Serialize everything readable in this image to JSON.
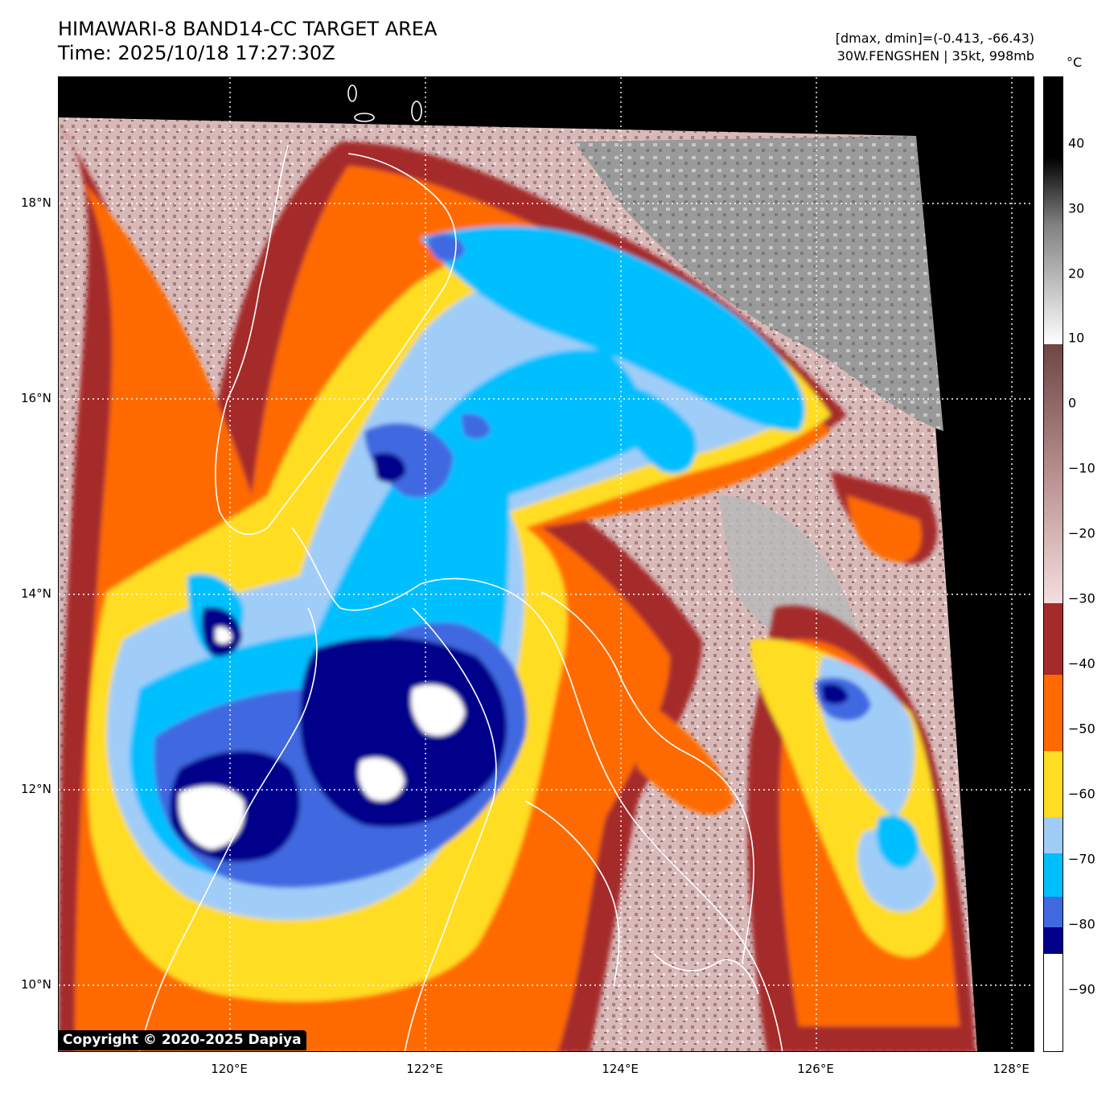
{
  "header": {
    "title_line1": "HIMAWARI-8 BAND14-CC TARGET AREA",
    "title_line2": "Time: 2025/10/18 17:27:30Z",
    "info_line1": "[dmax, dmin]=(-0.413, -66.43)",
    "info_line2": "30W.FENGSHEN | 35kt, 998mb"
  },
  "map": {
    "lat_ticks": [
      {
        "label": "18°N",
        "value": 18
      },
      {
        "label": "16°N",
        "value": 16
      },
      {
        "label": "14°N",
        "value": 14
      },
      {
        "label": "12°N",
        "value": 12
      },
      {
        "label": "10°N",
        "value": 10
      }
    ],
    "lon_ticks": [
      {
        "label": "120°E",
        "value": 120
      },
      {
        "label": "122°E",
        "value": 122
      },
      {
        "label": "124°E",
        "value": 124
      },
      {
        "label": "126°E",
        "value": 126
      },
      {
        "label": "128°E",
        "value": 128
      }
    ],
    "grid": "dotted white"
  },
  "colorbar": {
    "unit": "°C",
    "labels": [
      "40",
      "30",
      "20",
      "10",
      "0",
      "−10",
      "−20",
      "−30",
      "−40",
      "−50",
      "−60",
      "−70",
      "−80",
      "−90"
    ],
    "colors": {
      "white": "#ffffff",
      "navy": "#00008b",
      "royal_blue": "#4169e1",
      "deep_sky_blue": "#00bfff",
      "light_sky_blue": "#a0cdf8",
      "gold": "#ffdd22",
      "dark_orange": "#ff6a00",
      "brown": "#a52a2a"
    }
  },
  "copyright": "Copyright © 2020-2025 Dapiya"
}
